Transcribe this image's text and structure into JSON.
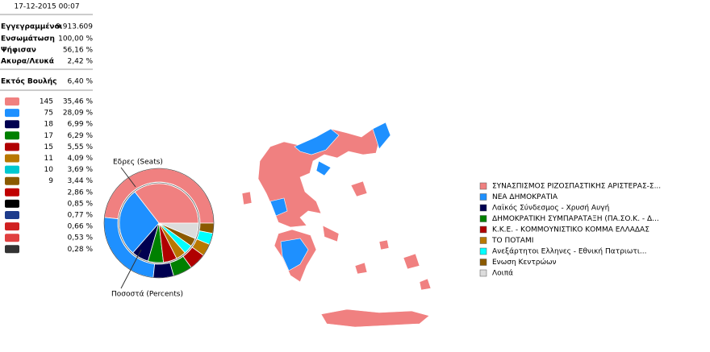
{
  "header": {
    "date": "17-12-2015 00:07"
  },
  "stats": [
    {
      "label": "Εγγεγραμμένοι",
      "value": "9.913.609"
    },
    {
      "label": "Ενσωμάτωση",
      "value": "100,00 %"
    },
    {
      "label": "Ψήφισαν",
      "value": "56,16 %"
    },
    {
      "label": "Ακυρα/Λευκά",
      "value": "2,42 %"
    },
    {
      "label": "Εκτός Βουλής",
      "value": "6,40 %"
    }
  ],
  "parties": [
    {
      "seats": "145",
      "percent": "35,46 %",
      "color": "#f08080"
    },
    {
      "seats": "75",
      "percent": "28,09 %",
      "color": "#1e90ff"
    },
    {
      "seats": "18",
      "percent": "6,99 %",
      "color": "#000050"
    },
    {
      "seats": "17",
      "percent": "6,29 %",
      "color": "#008000"
    },
    {
      "seats": "15",
      "percent": "5,55 %",
      "color": "#b00000"
    },
    {
      "seats": "11",
      "percent": "4,09 %",
      "color": "#b87800"
    },
    {
      "seats": "10",
      "percent": "3,69 %",
      "color": "#00c8d0"
    },
    {
      "seats": "9",
      "percent": "3,44 %",
      "color": "#8b5a00"
    },
    {
      "percent": "2,86 %",
      "color": "#c00000"
    },
    {
      "percent": "0,85 %",
      "color": "#000000"
    },
    {
      "percent": "0,77 %",
      "color": "#1e3c8c"
    },
    {
      "percent": "0,66 %",
      "color": "#d02020"
    },
    {
      "percent": "0,53 %",
      "color": "#e04040"
    },
    {
      "percent": "0,28 %",
      "color": "#333333"
    }
  ],
  "chart_data": {
    "type": "pie",
    "categories": [
      "ΣΥΝΑΣΠΙΣΜΟΣ ΡΙΖΟΣΠΑΣΤΙΚΗΣ ΑΡΙΣΤΕΡΑΣ-Σ...",
      "ΝΕΑ ΔΗΜΟΚΡΑΤΙΑ",
      "Λαϊκός Σύνδεσμος - Χρυσή Αυγή",
      "ΔΗΜΟΚΡΑΤΙΚΗ ΣΥΜΠΑΡΑΤΑΞΗ (ΠΑ.ΣΟ.Κ. - Δ...",
      "Κ.Κ.Ε. - ΚΟΜΜΟΥΝΙΣΤΙΚΟ ΚΟΜΜΑ ΕΛΛΑΔΑΣ",
      "ΤΟ ΠΟΤΑΜΙ",
      "Ανεξάρτητοι Ελληνες - Εθνική Πατριωτι...",
      "Ενωση Κεντρώων",
      "Λοιπά"
    ],
    "colors": [
      "#f08080",
      "#1e90ff",
      "#000050",
      "#008000",
      "#b00000",
      "#b87800",
      "#00ffff",
      "#8b5a00",
      "#dcdcdc"
    ],
    "series": [
      {
        "name": "Εδρες (Seats)",
        "values": [
          145,
          75,
          18,
          17,
          15,
          11,
          10,
          9,
          null
        ]
      },
      {
        "name": "Ποσοστά (Percents)",
        "values": [
          35.46,
          28.09,
          6.99,
          6.29,
          5.55,
          4.09,
          3.69,
          3.44,
          6.4
        ]
      }
    ]
  }
}
